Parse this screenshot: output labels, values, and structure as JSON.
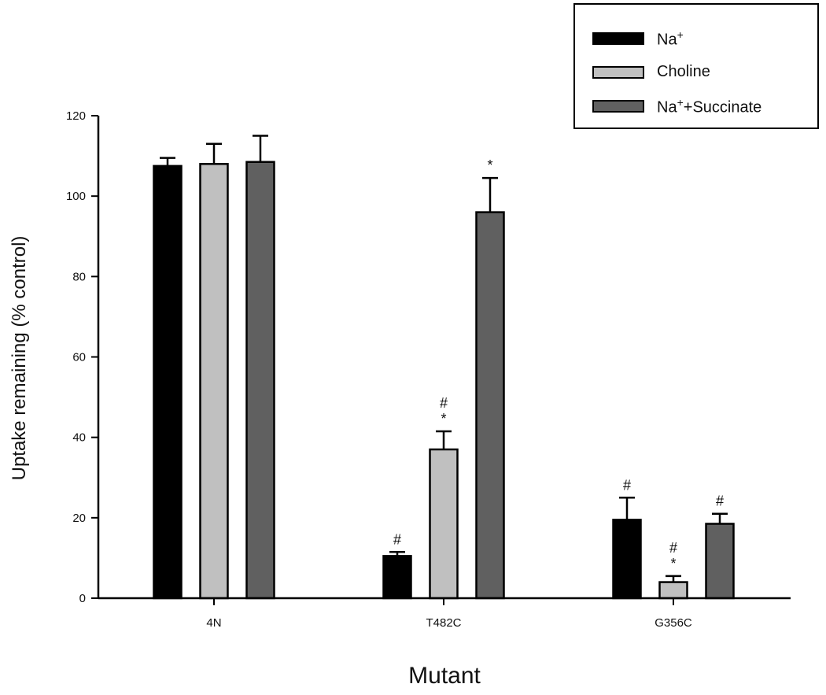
{
  "chart_data": {
    "type": "bar",
    "title": "",
    "xlabel": "Mutant",
    "ylabel": "Uptake remaining (% control)",
    "ylim": [
      0,
      120
    ],
    "yticks": [
      0,
      20,
      40,
      60,
      80,
      100,
      120
    ],
    "categories": [
      "4N",
      "T482C",
      "G356C"
    ],
    "legend_position": "top-right",
    "grid": false,
    "series": [
      {
        "name": "Na+",
        "label_base": "Na",
        "label_sup": "+",
        "label_suffix": "",
        "color": "#000000",
        "values": [
          107.5,
          10.5,
          19.5
        ],
        "errors": [
          2.0,
          1.0,
          5.5
        ],
        "annotations": [
          "",
          "#",
          "#"
        ]
      },
      {
        "name": "Choline",
        "label_base": "Choline",
        "label_sup": "",
        "label_suffix": "",
        "color": "#c0c0c0",
        "values": [
          108,
          37,
          4
        ],
        "errors": [
          5.0,
          4.5,
          1.5
        ],
        "annotations": [
          "",
          "#*",
          "#*"
        ]
      },
      {
        "name": "Na+ +Succinate",
        "label_base": "Na",
        "label_sup": "+",
        "label_suffix": "+Succinate",
        "color": "#606060",
        "values": [
          108.5,
          96,
          18.5
        ],
        "errors": [
          6.5,
          8.5,
          2.5
        ],
        "annotations": [
          "",
          "*",
          "#"
        ]
      }
    ]
  },
  "legend": {
    "items": [
      {
        "base": "Na",
        "sup": "+",
        "suffix": ""
      },
      {
        "base": "Choline",
        "sup": "",
        "suffix": ""
      },
      {
        "base": "Na",
        "sup": "+",
        "suffix": "+Succinate"
      }
    ]
  }
}
